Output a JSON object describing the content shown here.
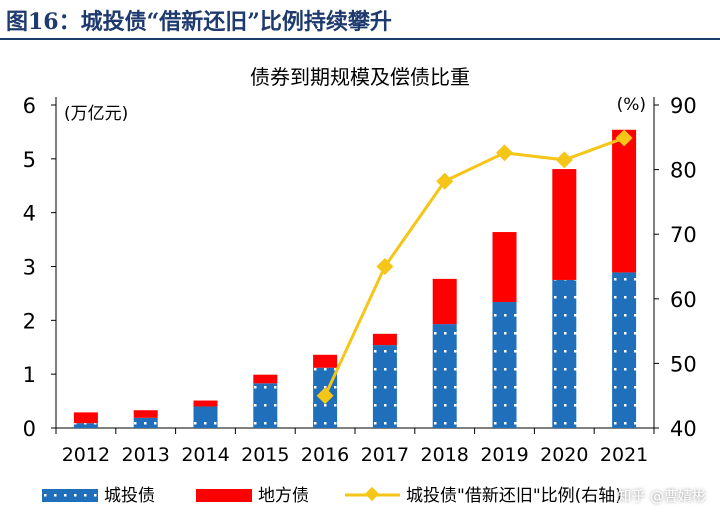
{
  "figure_title": "图16：城投债“借新还旧”比例持续攀升",
  "watermark": "知乎 @曹婧彬",
  "chart_data": {
    "type": "bar+line",
    "title": "债券到期规模及偿债比重",
    "ylabel": "(万亿元)",
    "y2label": "(%)",
    "ylim": [
      0,
      6
    ],
    "y2lim": [
      40,
      90
    ],
    "yticks": [
      "0",
      "1",
      "2",
      "3",
      "4",
      "5",
      "6"
    ],
    "y2ticks": [
      "40",
      "50",
      "60",
      "70",
      "80",
      "90"
    ],
    "categories": [
      "2012",
      "2013",
      "2014",
      "2015",
      "2016",
      "2017",
      "2018",
      "2019",
      "2020",
      "2021"
    ],
    "series": [
      {
        "name": "城投债",
        "type": "stacked-bar",
        "color": "#1f6fba",
        "values": [
          0.09,
          0.19,
          0.4,
          0.83,
          1.12,
          1.54,
          1.93,
          2.34,
          2.75,
          2.89
        ]
      },
      {
        "name": "地方债",
        "type": "stacked-bar",
        "color": "#ff0000",
        "values": [
          0.2,
          0.14,
          0.11,
          0.16,
          0.24,
          0.21,
          0.84,
          1.3,
          2.06,
          2.65
        ]
      },
      {
        "name": "城投债\"借新还旧\"比例(右轴)",
        "type": "line",
        "axis": "right",
        "color": "#f5c518",
        "values": [
          null,
          null,
          null,
          null,
          45.0,
          65.0,
          78.2,
          82.6,
          81.5,
          84.9
        ]
      }
    ],
    "legend": "bottom"
  }
}
